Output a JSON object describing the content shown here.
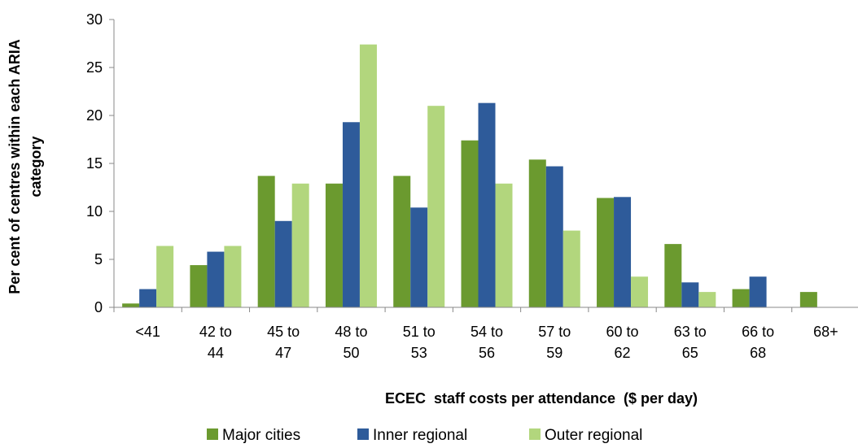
{
  "chart_data": {
    "type": "bar",
    "title": "",
    "categories": [
      [
        "<41"
      ],
      [
        "42 to",
        "44"
      ],
      [
        "45 to",
        "47"
      ],
      [
        "48 to",
        "50"
      ],
      [
        "51 to",
        "53"
      ],
      [
        "54 to",
        "56"
      ],
      [
        "57 to",
        "59"
      ],
      [
        "60 to",
        "62"
      ],
      [
        "63 to",
        "65"
      ],
      [
        "66 to",
        "68"
      ],
      [
        "68+"
      ]
    ],
    "series": [
      {
        "name": "Major cities",
        "color": "#6b9a2f",
        "values": [
          0.4,
          4.4,
          13.7,
          12.9,
          13.7,
          17.4,
          15.4,
          11.4,
          6.6,
          1.9,
          1.6
        ]
      },
      {
        "name": "Inner regional",
        "color": "#2e5b9a",
        "values": [
          1.9,
          5.8,
          9.0,
          19.3,
          10.4,
          21.3,
          14.7,
          11.5,
          2.6,
          3.2,
          0
        ]
      },
      {
        "name": "Outer regional",
        "color": "#b2d67d",
        "values": [
          6.4,
          6.4,
          12.9,
          27.4,
          21.0,
          12.9,
          8.0,
          3.2,
          1.6,
          0,
          0
        ]
      }
    ],
    "xlabel": "ECEC  staff costs per attendance  ($ per day)",
    "ylabel": [
      "Per cent of centres within  each ARIA",
      "category"
    ],
    "ylim": [
      0,
      30
    ],
    "yticks": [
      0,
      5,
      10,
      15,
      20,
      25,
      30
    ],
    "grid": false,
    "legend_position": "bottom"
  }
}
